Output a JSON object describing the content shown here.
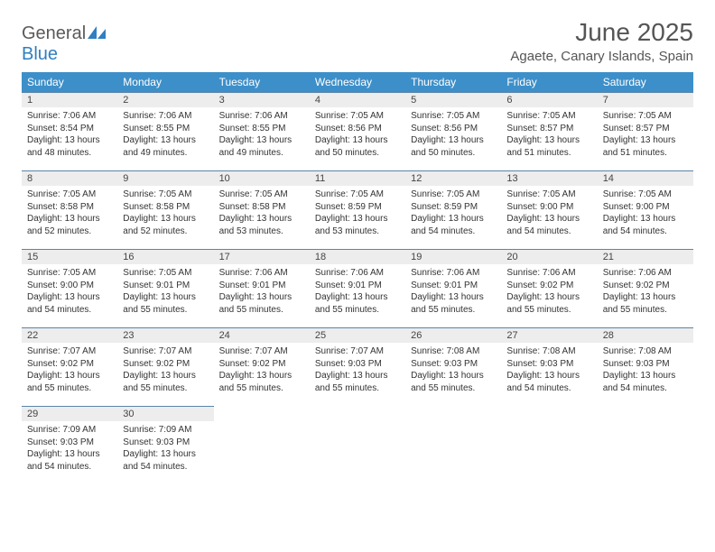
{
  "logo": {
    "text_gray": "General",
    "text_blue": "Blue"
  },
  "title": "June 2025",
  "location": "Agaete, Canary Islands, Spain",
  "colors": {
    "header_bg": "#3d8fc9",
    "header_text": "#ffffff",
    "daynum_bg": "#ededed",
    "border": "#5b84a8",
    "logo_gray": "#5a5a5a",
    "logo_blue": "#2f7fc1",
    "body_text": "#333333"
  },
  "columns": [
    "Sunday",
    "Monday",
    "Tuesday",
    "Wednesday",
    "Thursday",
    "Friday",
    "Saturday"
  ],
  "weeks": [
    [
      {
        "n": "1",
        "sr": "7:06 AM",
        "ss": "8:54 PM",
        "dl": "13 hours and 48 minutes."
      },
      {
        "n": "2",
        "sr": "7:06 AM",
        "ss": "8:55 PM",
        "dl": "13 hours and 49 minutes."
      },
      {
        "n": "3",
        "sr": "7:06 AM",
        "ss": "8:55 PM",
        "dl": "13 hours and 49 minutes."
      },
      {
        "n": "4",
        "sr": "7:05 AM",
        "ss": "8:56 PM",
        "dl": "13 hours and 50 minutes."
      },
      {
        "n": "5",
        "sr": "7:05 AM",
        "ss": "8:56 PM",
        "dl": "13 hours and 50 minutes."
      },
      {
        "n": "6",
        "sr": "7:05 AM",
        "ss": "8:57 PM",
        "dl": "13 hours and 51 minutes."
      },
      {
        "n": "7",
        "sr": "7:05 AM",
        "ss": "8:57 PM",
        "dl": "13 hours and 51 minutes."
      }
    ],
    [
      {
        "n": "8",
        "sr": "7:05 AM",
        "ss": "8:58 PM",
        "dl": "13 hours and 52 minutes."
      },
      {
        "n": "9",
        "sr": "7:05 AM",
        "ss": "8:58 PM",
        "dl": "13 hours and 52 minutes."
      },
      {
        "n": "10",
        "sr": "7:05 AM",
        "ss": "8:58 PM",
        "dl": "13 hours and 53 minutes."
      },
      {
        "n": "11",
        "sr": "7:05 AM",
        "ss": "8:59 PM",
        "dl": "13 hours and 53 minutes."
      },
      {
        "n": "12",
        "sr": "7:05 AM",
        "ss": "8:59 PM",
        "dl": "13 hours and 54 minutes."
      },
      {
        "n": "13",
        "sr": "7:05 AM",
        "ss": "9:00 PM",
        "dl": "13 hours and 54 minutes."
      },
      {
        "n": "14",
        "sr": "7:05 AM",
        "ss": "9:00 PM",
        "dl": "13 hours and 54 minutes."
      }
    ],
    [
      {
        "n": "15",
        "sr": "7:05 AM",
        "ss": "9:00 PM",
        "dl": "13 hours and 54 minutes."
      },
      {
        "n": "16",
        "sr": "7:05 AM",
        "ss": "9:01 PM",
        "dl": "13 hours and 55 minutes."
      },
      {
        "n": "17",
        "sr": "7:06 AM",
        "ss": "9:01 PM",
        "dl": "13 hours and 55 minutes."
      },
      {
        "n": "18",
        "sr": "7:06 AM",
        "ss": "9:01 PM",
        "dl": "13 hours and 55 minutes."
      },
      {
        "n": "19",
        "sr": "7:06 AM",
        "ss": "9:01 PM",
        "dl": "13 hours and 55 minutes."
      },
      {
        "n": "20",
        "sr": "7:06 AM",
        "ss": "9:02 PM",
        "dl": "13 hours and 55 minutes."
      },
      {
        "n": "21",
        "sr": "7:06 AM",
        "ss": "9:02 PM",
        "dl": "13 hours and 55 minutes."
      }
    ],
    [
      {
        "n": "22",
        "sr": "7:07 AM",
        "ss": "9:02 PM",
        "dl": "13 hours and 55 minutes."
      },
      {
        "n": "23",
        "sr": "7:07 AM",
        "ss": "9:02 PM",
        "dl": "13 hours and 55 minutes."
      },
      {
        "n": "24",
        "sr": "7:07 AM",
        "ss": "9:02 PM",
        "dl": "13 hours and 55 minutes."
      },
      {
        "n": "25",
        "sr": "7:07 AM",
        "ss": "9:03 PM",
        "dl": "13 hours and 55 minutes."
      },
      {
        "n": "26",
        "sr": "7:08 AM",
        "ss": "9:03 PM",
        "dl": "13 hours and 55 minutes."
      },
      {
        "n": "27",
        "sr": "7:08 AM",
        "ss": "9:03 PM",
        "dl": "13 hours and 54 minutes."
      },
      {
        "n": "28",
        "sr": "7:08 AM",
        "ss": "9:03 PM",
        "dl": "13 hours and 54 minutes."
      }
    ],
    [
      {
        "n": "29",
        "sr": "7:09 AM",
        "ss": "9:03 PM",
        "dl": "13 hours and 54 minutes."
      },
      {
        "n": "30",
        "sr": "7:09 AM",
        "ss": "9:03 PM",
        "dl": "13 hours and 54 minutes."
      },
      null,
      null,
      null,
      null,
      null
    ]
  ],
  "labels": {
    "sunrise": "Sunrise: ",
    "sunset": "Sunset: ",
    "daylight": "Daylight: "
  }
}
